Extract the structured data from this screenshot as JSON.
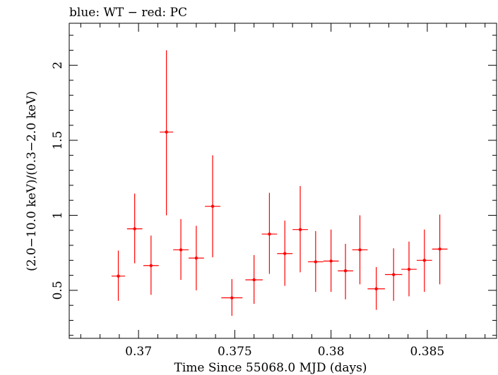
{
  "chart_data": {
    "type": "scatter",
    "title": "blue: WT − red: PC",
    "xlabel": "Time Since 55068.0 MJD (days)",
    "ylabel": "(2.0−10.0 keV)/(0.3−2.0 keV)",
    "xlim": [
      0.3664,
      0.3886
    ],
    "ylim": [
      0.18,
      2.28
    ],
    "x_ticks": [
      0.37,
      0.375,
      0.38,
      0.385
    ],
    "x_tick_labels": [
      "0.37",
      "0.375",
      "0.38",
      "0.385"
    ],
    "y_ticks": [
      0.5,
      1,
      1.5,
      2
    ],
    "y_tick_labels": [
      "0.5",
      "1",
      "1.5",
      "2"
    ],
    "grid": false,
    "series": [
      {
        "color": "#ff0000",
        "points": [
          {
            "x": 0.36895,
            "y": 0.595,
            "xerr": 0.00035,
            "ylo": 0.43,
            "yhi": 0.765
          },
          {
            "x": 0.3698,
            "y": 0.91,
            "xerr": 0.0004,
            "ylo": 0.68,
            "yhi": 1.145
          },
          {
            "x": 0.37065,
            "y": 0.665,
            "xerr": 0.0004,
            "ylo": 0.47,
            "yhi": 0.865
          },
          {
            "x": 0.37145,
            "y": 1.555,
            "xerr": 0.00035,
            "ylo": 1.0,
            "yhi": 2.1
          },
          {
            "x": 0.3722,
            "y": 0.77,
            "xerr": 0.0004,
            "ylo": 0.57,
            "yhi": 0.975
          },
          {
            "x": 0.373,
            "y": 0.715,
            "xerr": 0.0004,
            "ylo": 0.5,
            "yhi": 0.93
          },
          {
            "x": 0.37385,
            "y": 1.06,
            "xerr": 0.0004,
            "ylo": 0.72,
            "yhi": 1.4
          },
          {
            "x": 0.37485,
            "y": 0.45,
            "xerr": 0.00055,
            "ylo": 0.33,
            "yhi": 0.575
          },
          {
            "x": 0.376,
            "y": 0.57,
            "xerr": 0.00045,
            "ylo": 0.41,
            "yhi": 0.735
          },
          {
            "x": 0.3768,
            "y": 0.875,
            "xerr": 0.0004,
            "ylo": 0.61,
            "yhi": 1.15
          },
          {
            "x": 0.3776,
            "y": 0.745,
            "xerr": 0.0004,
            "ylo": 0.53,
            "yhi": 0.965
          },
          {
            "x": 0.3784,
            "y": 0.905,
            "xerr": 0.0004,
            "ylo": 0.62,
            "yhi": 1.195
          },
          {
            "x": 0.3792,
            "y": 0.69,
            "xerr": 0.0004,
            "ylo": 0.49,
            "yhi": 0.895
          },
          {
            "x": 0.38,
            "y": 0.695,
            "xerr": 0.0004,
            "ylo": 0.49,
            "yhi": 0.905
          },
          {
            "x": 0.38075,
            "y": 0.63,
            "xerr": 0.0004,
            "ylo": 0.44,
            "yhi": 0.81
          },
          {
            "x": 0.3815,
            "y": 0.77,
            "xerr": 0.0004,
            "ylo": 0.54,
            "yhi": 1.0
          },
          {
            "x": 0.38235,
            "y": 0.51,
            "xerr": 0.00045,
            "ylo": 0.37,
            "yhi": 0.655
          },
          {
            "x": 0.38325,
            "y": 0.605,
            "xerr": 0.00045,
            "ylo": 0.43,
            "yhi": 0.78
          },
          {
            "x": 0.38405,
            "y": 0.64,
            "xerr": 0.0004,
            "ylo": 0.46,
            "yhi": 0.825
          },
          {
            "x": 0.38485,
            "y": 0.7,
            "xerr": 0.0004,
            "ylo": 0.49,
            "yhi": 0.905
          },
          {
            "x": 0.38565,
            "y": 0.775,
            "xerr": 0.0004,
            "ylo": 0.54,
            "yhi": 1.005
          }
        ]
      }
    ]
  }
}
